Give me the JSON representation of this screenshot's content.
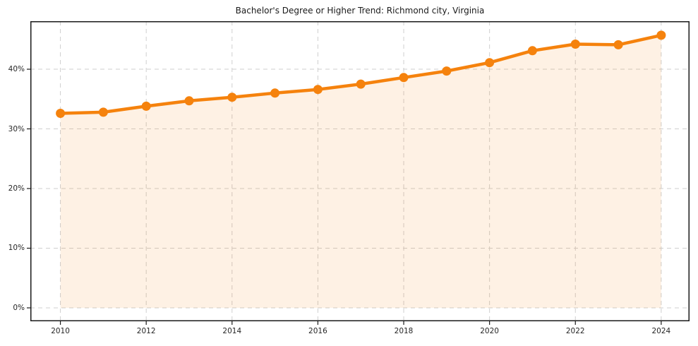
{
  "chart_data": {
    "type": "line",
    "title": "Bachelor's Degree or Higher Trend: Richmond city, Virginia",
    "x": [
      2010,
      2011,
      2012,
      2013,
      2014,
      2015,
      2016,
      2017,
      2018,
      2019,
      2020,
      2021,
      2022,
      2023,
      2024
    ],
    "series": [
      {
        "name": "Bachelor's degree or higher (%)",
        "values": [
          32.6,
          32.8,
          33.8,
          34.7,
          35.3,
          36.0,
          36.6,
          37.5,
          38.6,
          39.7,
          41.1,
          43.1,
          44.2,
          44.1,
          45.7
        ]
      }
    ],
    "xlabel": "",
    "ylabel": "",
    "xlim": [
      2009.3,
      2024.66
    ],
    "ylim": [
      -2.25,
      48.05
    ],
    "xticks": [
      2010,
      2012,
      2014,
      2016,
      2018,
      2020,
      2022,
      2024
    ],
    "yticks": [
      0,
      10,
      20,
      30,
      40
    ],
    "ytick_suffix": "%",
    "grid": true,
    "grid_style": "dashed",
    "legend": "none",
    "area_fill": true,
    "fill_baseline": 0,
    "colors": {
      "line": "#f5820d",
      "marker": "#f5820d",
      "fill": "#f5820d",
      "fill_opacity": 0.11,
      "grid": "#cfcfcf",
      "spine": "#1a1a1a",
      "tick": "#1a1a1a",
      "text": "#262626",
      "background": "#ffffff"
    },
    "marker_radius": 6.5,
    "line_width": 4.5
  }
}
